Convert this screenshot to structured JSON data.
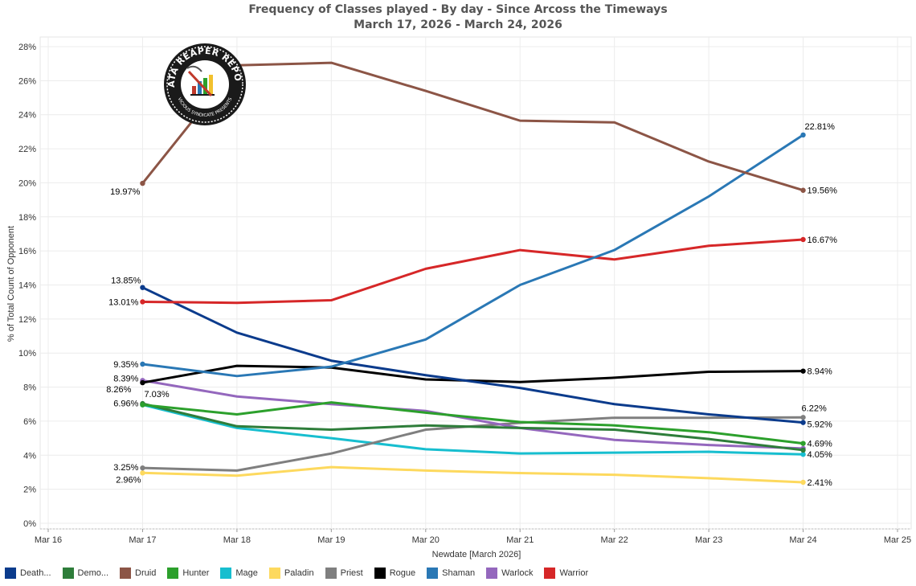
{
  "chart_data": {
    "type": "line",
    "title": "Frequency of Classes played - By day - Since Arcoss the Timeways",
    "subtitle": "March 17, 2026 - March 24, 2026",
    "xlabel": "Newdate [March 2026]",
    "ylabel": "% of Total Count of Opponent",
    "xlim": [
      16,
      25
    ],
    "ylim": [
      0,
      28
    ],
    "x_ticks": [
      "Mar 16",
      "Mar 17",
      "Mar 18",
      "Mar 19",
      "Mar 20",
      "Mar 21",
      "Mar 22",
      "Mar 23",
      "Mar 24",
      "Mar 25"
    ],
    "y_ticks": [
      "0%",
      "2%",
      "4%",
      "6%",
      "8%",
      "10%",
      "12%",
      "14%",
      "16%",
      "18%",
      "20%",
      "22%",
      "24%",
      "26%",
      "28%"
    ],
    "x": [
      17,
      18,
      19,
      20,
      21,
      22,
      23,
      24
    ],
    "series": [
      {
        "name": "Death...",
        "color": "#0b3b8c",
        "values": [
          13.85,
          11.2,
          9.55,
          8.7,
          7.95,
          7.0,
          6.4,
          5.92
        ],
        "labels": [
          "13.85%",
          "5.92%"
        ]
      },
      {
        "name": "Demo...",
        "color": "#2e7d3a",
        "values": [
          7.03,
          5.7,
          5.5,
          5.75,
          5.6,
          5.5,
          4.95,
          4.3
        ],
        "labels": [
          "7.03%",
          ""
        ]
      },
      {
        "name": "Druid",
        "color": "#8c5546",
        "values": [
          19.97,
          26.9,
          27.05,
          25.4,
          23.65,
          23.55,
          21.25,
          19.56
        ],
        "labels": [
          "19.97%",
          "19.56%"
        ]
      },
      {
        "name": "Hunter",
        "color": "#2ca02c",
        "values": [
          6.96,
          6.4,
          7.1,
          6.5,
          5.95,
          5.75,
          5.35,
          4.69
        ],
        "labels": [
          "6.96%",
          "4.69%"
        ]
      },
      {
        "name": "Mage",
        "color": "#17becf",
        "values": [
          6.96,
          5.6,
          5.0,
          4.35,
          4.1,
          4.15,
          4.2,
          4.05
        ],
        "labels": [
          "",
          "4.05%"
        ]
      },
      {
        "name": "Paladin",
        "color": "#fdd95e",
        "values": [
          2.96,
          2.8,
          3.3,
          3.1,
          2.95,
          2.85,
          2.65,
          2.41
        ],
        "labels": [
          "2.96%",
          "2.41%"
        ]
      },
      {
        "name": "Priest",
        "color": "#7f7f7f",
        "values": [
          3.25,
          3.1,
          4.1,
          5.5,
          5.9,
          6.2,
          6.2,
          6.22
        ],
        "labels": [
          "3.25%",
          "6.22%"
        ]
      },
      {
        "name": "Rogue",
        "color": "#000000",
        "values": [
          8.26,
          9.25,
          9.15,
          8.45,
          8.3,
          8.55,
          8.9,
          8.94
        ],
        "labels": [
          "8.26%",
          "8.94%"
        ]
      },
      {
        "name": "Shaman",
        "color": "#2a78b5",
        "values": [
          9.35,
          8.65,
          9.2,
          10.8,
          14.0,
          16.05,
          19.2,
          22.81
        ],
        "labels": [
          "9.35%",
          "22.81%"
        ]
      },
      {
        "name": "Warlock",
        "color": "#9467bd",
        "values": [
          8.39,
          7.45,
          7.0,
          6.6,
          5.6,
          4.9,
          4.6,
          4.4
        ],
        "labels": [
          "8.39%",
          ""
        ]
      },
      {
        "name": "Warrior",
        "color": "#d62728",
        "values": [
          13.01,
          12.95,
          13.1,
          14.95,
          16.05,
          15.5,
          16.3,
          16.67
        ],
        "labels": [
          "13.01%",
          "16.67%"
        ]
      }
    ]
  },
  "logo": {
    "title": "DATA REAPER REPORT",
    "subtitle": "VICIOUS SYNDICATE PRESENTS"
  }
}
